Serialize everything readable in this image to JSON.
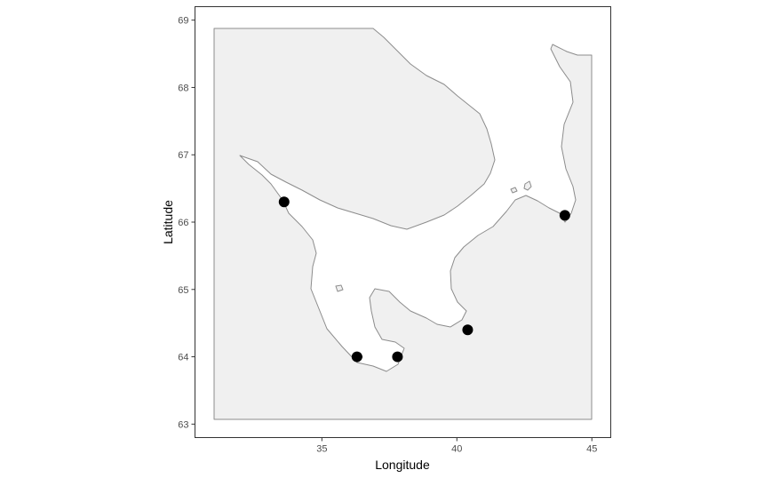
{
  "chart_data": {
    "type": "map",
    "xlabel": "Longitude",
    "ylabel": "Latitude",
    "xlim": [
      30.3,
      45.7
    ],
    "ylim": [
      62.8,
      69.2
    ],
    "x_ticks": [
      35,
      40,
      45
    ],
    "y_ticks": [
      63,
      64,
      65,
      66,
      67,
      68,
      69
    ],
    "grid": false,
    "colors": {
      "land": "#f0f0f0",
      "coast": "#8c8c8c",
      "point": "#000000",
      "panel_border": "#333333"
    },
    "stations": [
      {
        "lon": 33.6,
        "lat": 66.3
      },
      {
        "lon": 44.0,
        "lat": 66.1
      },
      {
        "lon": 40.4,
        "lat": 64.4
      },
      {
        "lon": 36.3,
        "lat": 64.0
      },
      {
        "lon": 37.8,
        "lat": 64.0
      }
    ]
  }
}
